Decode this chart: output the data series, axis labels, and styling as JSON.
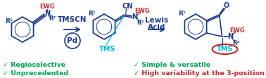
{
  "background_color": "#ffffff",
  "figsize": [
    3.78,
    1.11
  ],
  "dpi": 100,
  "blue": "#1a3a8c",
  "red": "#c1272d",
  "green": "#00a651",
  "tms_color": "#00bcd4",
  "crimson": "#c1272d",
  "bullet1_t1": "✓ Regioselective",
  "bullet1_t2": "✓ Unprecedented",
  "bullet2_t1": "✓ Simple & versatile",
  "bullet2_t2": "✓ High variability at the 3-position"
}
